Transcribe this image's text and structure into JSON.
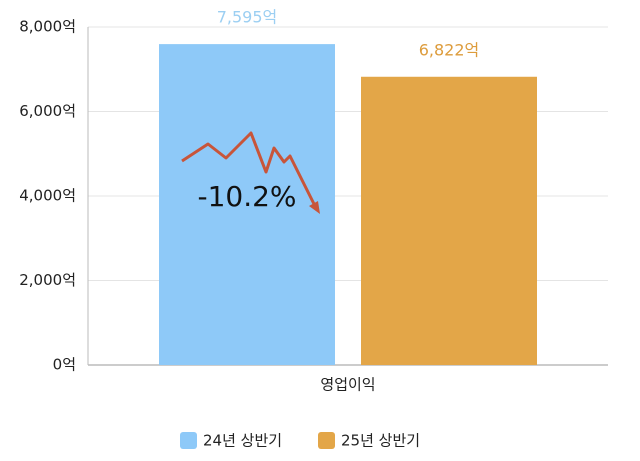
{
  "chart_data": {
    "type": "bar",
    "categories": [
      "영업이익"
    ],
    "series": [
      {
        "name": "24년 상반기",
        "color": "#8ec9f8",
        "label_color": "#9ccff2",
        "values": [
          7595
        ],
        "value_labels": [
          "7,595억"
        ]
      },
      {
        "name": "25년 상반기",
        "color": "#e3a648",
        "label_color": "#dd9c3c",
        "values": [
          6822
        ],
        "value_labels": [
          "6,822억"
        ]
      }
    ],
    "ylim": [
      0,
      8000
    ],
    "yticks": [
      {
        "value": 0,
        "label": "0억"
      },
      {
        "value": 2000,
        "label": "2,000억"
      },
      {
        "value": 4000,
        "label": "4,000억"
      },
      {
        "value": 6000,
        "label": "6,000억"
      },
      {
        "value": 8000,
        "label": "8,000억"
      }
    ],
    "grid": true,
    "annotation": "-10.2%",
    "legend": "bottom"
  }
}
